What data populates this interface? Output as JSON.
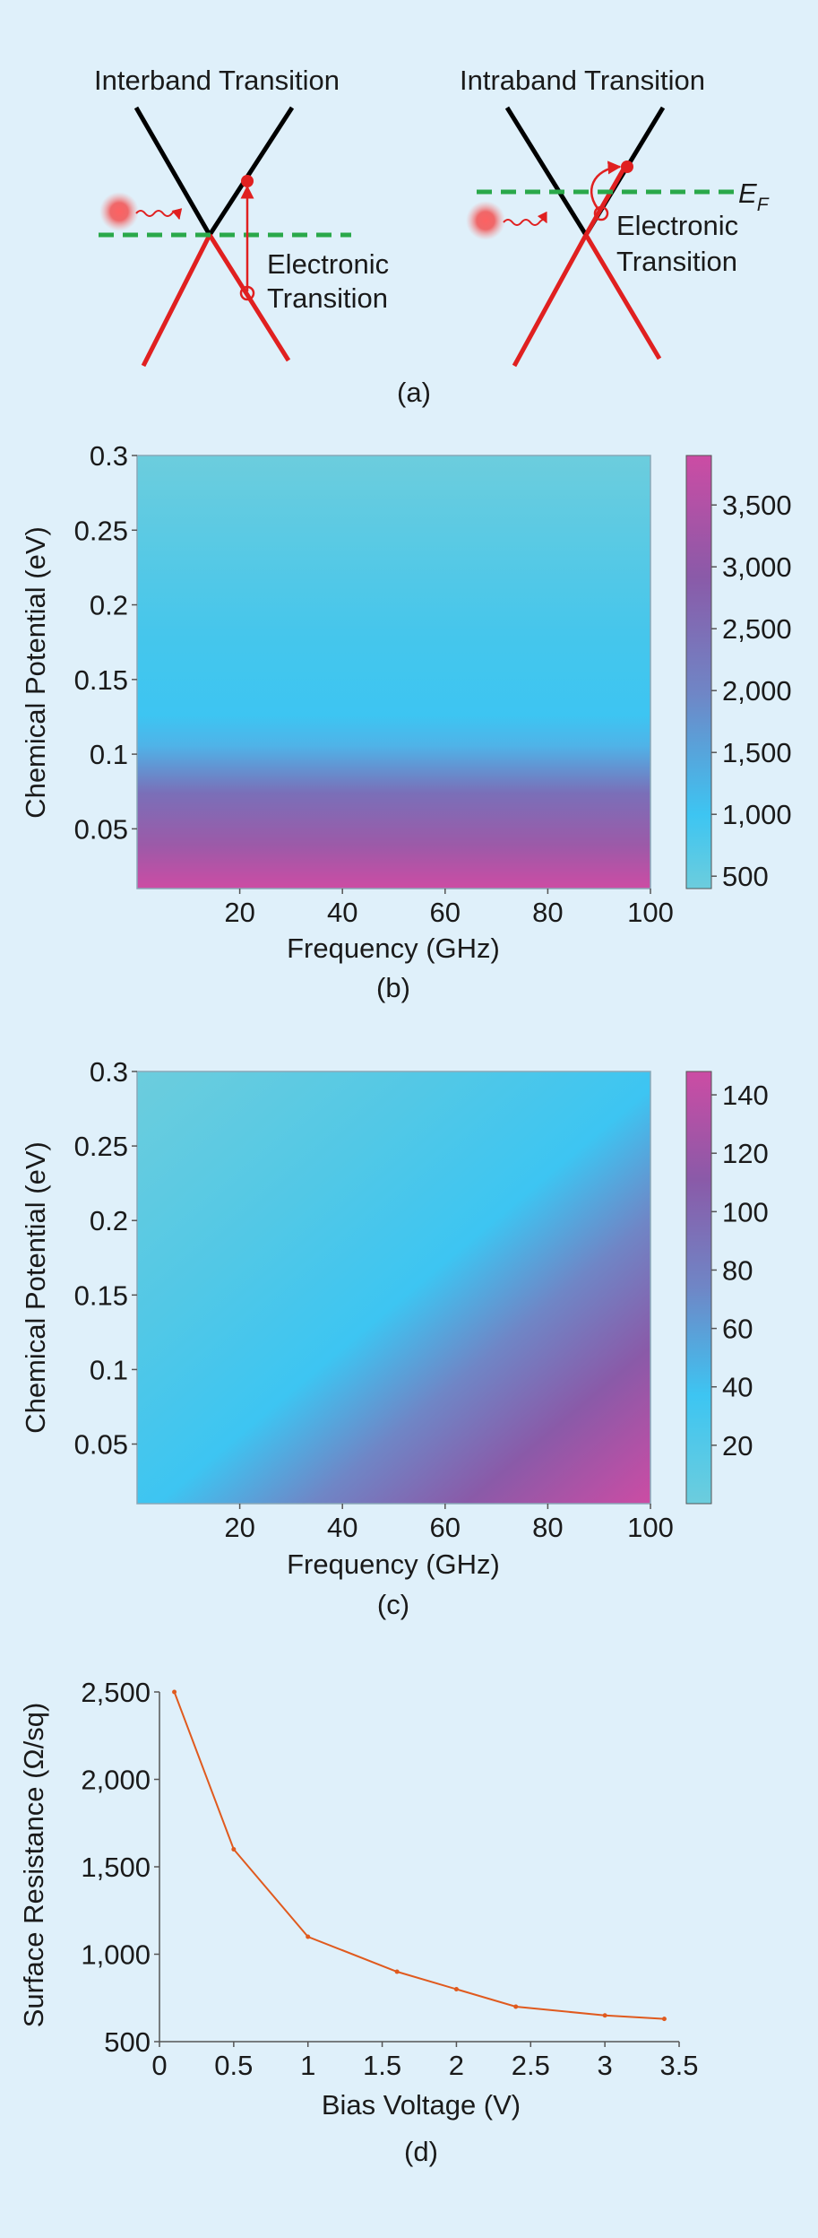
{
  "colors": {
    "background": "#dff0fa",
    "band_upper": "#000000",
    "band_lower": "#e02020",
    "fermi_line": "#2aa84a",
    "electron": "#e02020",
    "colormap_low": "#6ccddd",
    "colormap_mid": "#3dc5f2",
    "colormap_mid2": "#7a6fb8",
    "colormap_high": "#cc4ca4",
    "line_series": "#e05a1e"
  },
  "panel_a": {
    "left_title": "Interband Transition",
    "right_title": "Intraband Transition",
    "left_label_line1": "Electronic",
    "left_label_line2": "Transition",
    "right_label_line1": "Electronic",
    "right_label_line2": "Transition",
    "fermi_label": "E",
    "fermi_sub": "F",
    "caption": "(a)"
  },
  "chart_data": [
    {
      "type": "heatmap",
      "panel": "b",
      "caption": "(b)",
      "xlabel": "Frequency (GHz)",
      "ylabel": "Chemical Potential (eV)",
      "xlim": [
        0,
        100
      ],
      "ylim": [
        0.01,
        0.3
      ],
      "xticks": [
        20,
        40,
        60,
        80,
        100
      ],
      "xtick_labels": [
        "20",
        "40",
        "60",
        "80",
        "100"
      ],
      "yticks": [
        0.05,
        0.1,
        0.15,
        0.2,
        0.25,
        0.3
      ],
      "ytick_labels": [
        "0.05",
        "0.1",
        "0.15",
        "0.2",
        "0.25",
        "0.3"
      ],
      "colorbar": {
        "range": [
          400,
          3900
        ],
        "ticks": [
          500,
          1000,
          1500,
          2000,
          2500,
          3000,
          3500
        ],
        "tick_labels": [
          "500",
          "1,000",
          "1,500",
          "2,000",
          "2,500",
          "3,000",
          "3,500"
        ]
      },
      "description_values": {
        "chemical_potential": [
          0.01,
          0.03,
          0.05,
          0.07,
          0.09,
          0.11,
          0.13,
          0.15,
          0.2,
          0.25,
          0.3
        ],
        "value_at_any_frequency": [
          3700,
          3200,
          2700,
          2100,
          1600,
          1200,
          1000,
          900,
          700,
          600,
          550
        ]
      }
    },
    {
      "type": "heatmap",
      "panel": "c",
      "caption": "(c)",
      "xlabel": "Frequency (GHz)",
      "ylabel": "Chemical Potential (eV)",
      "xlim": [
        0,
        100
      ],
      "ylim": [
        0.01,
        0.3
      ],
      "xticks": [
        20,
        40,
        60,
        80,
        100
      ],
      "xtick_labels": [
        "20",
        "40",
        "60",
        "80",
        "100"
      ],
      "yticks": [
        0.05,
        0.1,
        0.15,
        0.2,
        0.25,
        0.3
      ],
      "ytick_labels": [
        "0.05",
        "0.1",
        "0.15",
        "0.2",
        "0.25",
        "0.3"
      ],
      "colorbar": {
        "range": [
          0,
          148
        ],
        "ticks": [
          20,
          40,
          60,
          80,
          100,
          120,
          140
        ],
        "tick_labels": [
          "20",
          "40",
          "60",
          "80",
          "100",
          "120",
          "140"
        ]
      }
    },
    {
      "type": "line",
      "panel": "d",
      "caption": "(d)",
      "xlabel": "Bias Voltage (V)",
      "ylabel": "Surface Resistance (Ω/sq)",
      "xlim": [
        0,
        3.5
      ],
      "ylim": [
        500,
        2500
      ],
      "xticks": [
        0,
        0.5,
        1,
        1.5,
        2,
        2.5,
        3,
        3.5
      ],
      "xtick_labels": [
        "0",
        "0.5",
        "1",
        "1.5",
        "2",
        "2.5",
        "3",
        "3.5"
      ],
      "yticks": [
        500,
        1000,
        1500,
        2000,
        2500
      ],
      "ytick_labels": [
        "500",
        "1,000",
        "1,500",
        "2,000",
        "2,500"
      ],
      "x": [
        0.1,
        0.5,
        1.0,
        1.6,
        2.0,
        2.4,
        3.0,
        3.4
      ],
      "y": [
        2500,
        1600,
        1100,
        900,
        800,
        700,
        650,
        630
      ]
    }
  ]
}
